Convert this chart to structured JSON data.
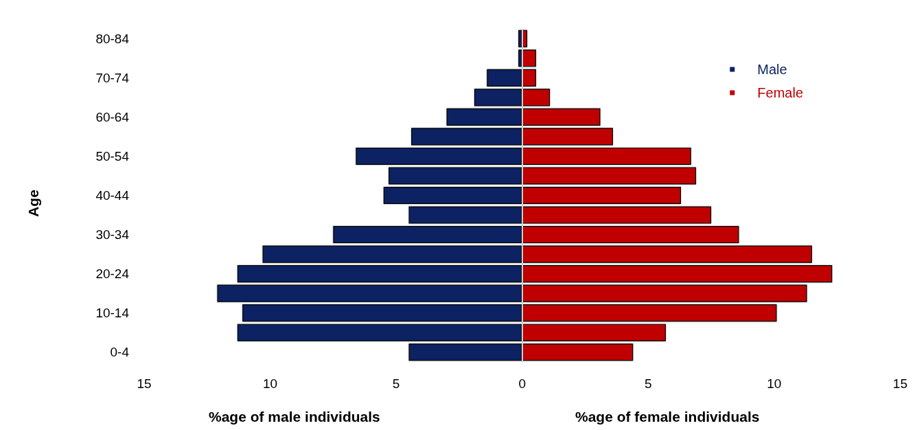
{
  "chart_data": {
    "type": "bar",
    "orientation": "horizontal",
    "stacked": true,
    "categories": [
      "80-84",
      null,
      "70-74",
      null,
      "60-64",
      null,
      "50-54",
      null,
      "40-44",
      null,
      "30-34",
      null,
      "20-24",
      null,
      "10-14",
      null,
      "0-4"
    ],
    "series": [
      {
        "name": "Male",
        "color": "#0a2463",
        "values": [
          -0.15,
          -0.15,
          -1.4,
          -1.9,
          -3.0,
          -4.4,
          -6.6,
          -5.3,
          -5.5,
          -4.5,
          -7.5,
          -10.3,
          -11.3,
          -12.1,
          -11.1,
          -11.3,
          -4.5
        ]
      },
      {
        "name": "Female",
        "color": "#c00000",
        "values": [
          0.2,
          0.55,
          0.55,
          1.1,
          3.1,
          3.6,
          6.7,
          6.9,
          6.3,
          7.5,
          8.6,
          11.5,
          12.3,
          11.3,
          10.1,
          5.7,
          4.4
        ]
      }
    ],
    "xlim": [
      -15,
      15
    ],
    "xticks": [
      {
        "value": -15,
        "label": "15"
      },
      {
        "value": -10,
        "label": "10"
      },
      {
        "value": -5,
        "label": "5"
      },
      {
        "value": 0,
        "label": "0"
      },
      {
        "value": 5,
        "label": "5"
      },
      {
        "value": 10,
        "label": "10"
      },
      {
        "value": 15,
        "label": "15"
      }
    ],
    "xlabel": "%age of male individuals",
    "annotations": [
      "%age of female individuals"
    ],
    "ylabel": "Age",
    "ref_lines": [
      {
        "axis": "x",
        "value": 0,
        "color": "#d0d0d0"
      }
    ],
    "legend": "top right",
    "grid": false
  }
}
